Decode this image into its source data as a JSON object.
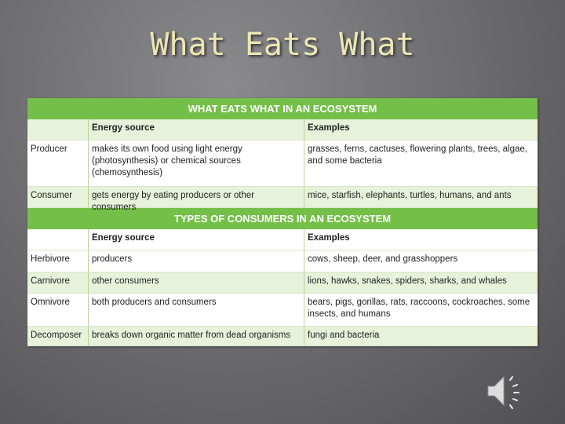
{
  "title": "What Eats What",
  "table1": {
    "title": "WHAT EATS WHAT IN AN ECOSYSTEM",
    "headers": [
      "Energy source",
      "Examples"
    ],
    "rows": [
      [
        "Producer",
        "makes its own food using light energy (photosynthesis) or chemical sources (chemosynthesis)",
        "grasses, ferns, cactuses, flowering plants, trees, algae, and some bacteria"
      ],
      [
        "Consumer",
        "gets energy by eating producers or other consumers",
        "mice, starfish, elephants, turtles, humans, and ants"
      ]
    ]
  },
  "table2": {
    "title": "TYPES OF CONSUMERS IN AN ECOSYSTEM",
    "headers": [
      "Energy source",
      "Examples"
    ],
    "rows": [
      [
        "Herbivore",
        "producers",
        "cows, sheep, deer, and grasshoppers"
      ],
      [
        "Carnivore",
        "other consumers",
        "lions, hawks, snakes, spiders, sharks, and whales"
      ],
      [
        "Omnivore",
        "both producers and consumers",
        "bears, pigs, gorillas, rats, raccoons, cockroaches, some insects, and humans"
      ],
      [
        "Decomposer",
        "breaks down organic matter from dead organisms",
        "fungi and bacteria"
      ]
    ]
  }
}
